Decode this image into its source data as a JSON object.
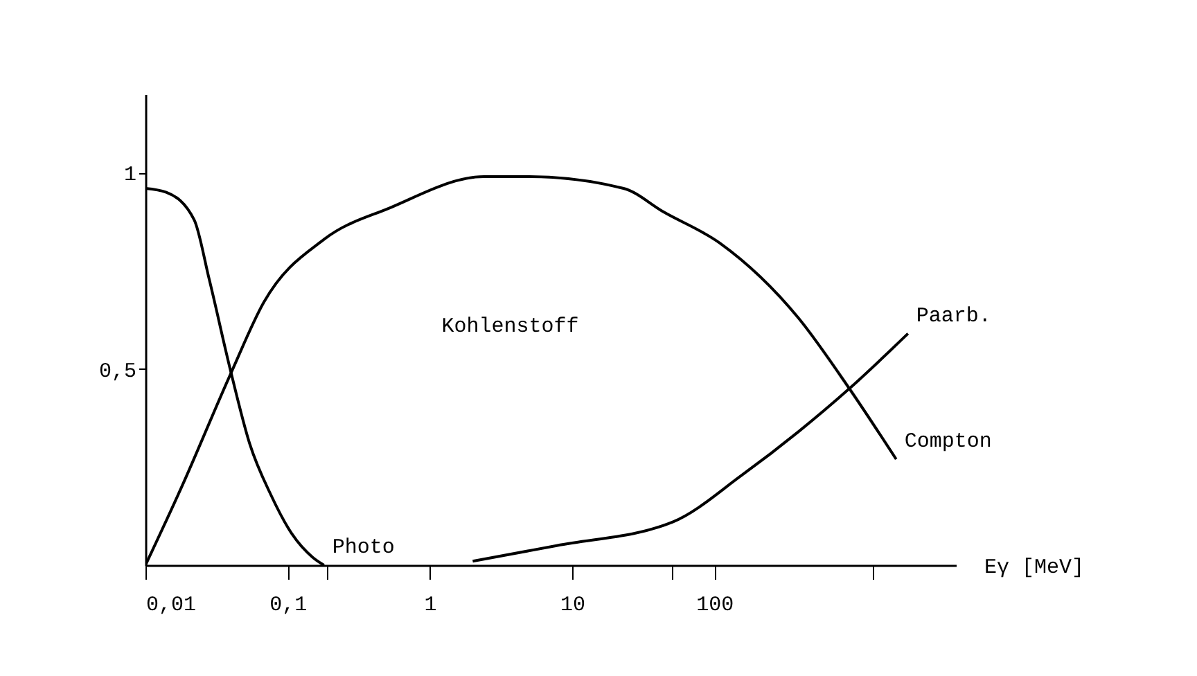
{
  "chart_data": {
    "type": "line",
    "xlabel": "Eγ [MeV]",
    "log": "x",
    "xlim": [
      0.01,
      5000
    ],
    "ylim": [
      0,
      1.2
    ],
    "xticks": [
      {
        "value": 0.01,
        "label": "0,01"
      },
      {
        "value": 0.1,
        "label": "0,1"
      },
      {
        "value": 0.19,
        "label": null
      },
      {
        "value": 1,
        "label": "1"
      },
      {
        "value": 10,
        "label": "10"
      },
      {
        "value": 50,
        "label": null
      },
      {
        "value": 100,
        "label": "100"
      },
      {
        "value": 1300,
        "label": null
      }
    ],
    "yticks": [
      {
        "value": 0.5,
        "label": "0,5"
      },
      {
        "value": 1,
        "label": "1"
      }
    ],
    "grid": false,
    "legend": false,
    "marker": "none",
    "line_style": "solid",
    "annotations": [
      "Kohlenstoff"
    ],
    "series": [
      {
        "name": "Photo",
        "color": "#000000",
        "x": [
          0.01,
          0.014,
          0.022,
          0.028,
          0.04,
          0.054,
          0.076,
          0.107,
          0.15,
          0.18
        ],
        "values": [
          0.96,
          0.95,
          0.88,
          0.73,
          0.49,
          0.31,
          0.18,
          0.08,
          0.02,
          0
        ]
      },
      {
        "name": "Compton",
        "color": "#000000",
        "x": [
          0.01,
          0.018,
          0.04,
          0.068,
          0.18,
          0.52,
          2.4,
          5,
          23,
          44,
          110,
          390,
          890,
          1900
        ],
        "values": [
          0,
          0.2,
          0.49,
          0.67,
          0.83,
          0.91,
          0.99,
          0.99,
          0.96,
          0.9,
          0.82,
          0.63,
          0.45,
          0.27
        ]
      },
      {
        "name": "Paarb.",
        "color": "#000000",
        "x": [
          2,
          7.8,
          51,
          157,
          390,
          890,
          2300
        ],
        "values": [
          0.01,
          0.05,
          0.11,
          0.23,
          0.34,
          0.45,
          0.59
        ]
      }
    ]
  }
}
